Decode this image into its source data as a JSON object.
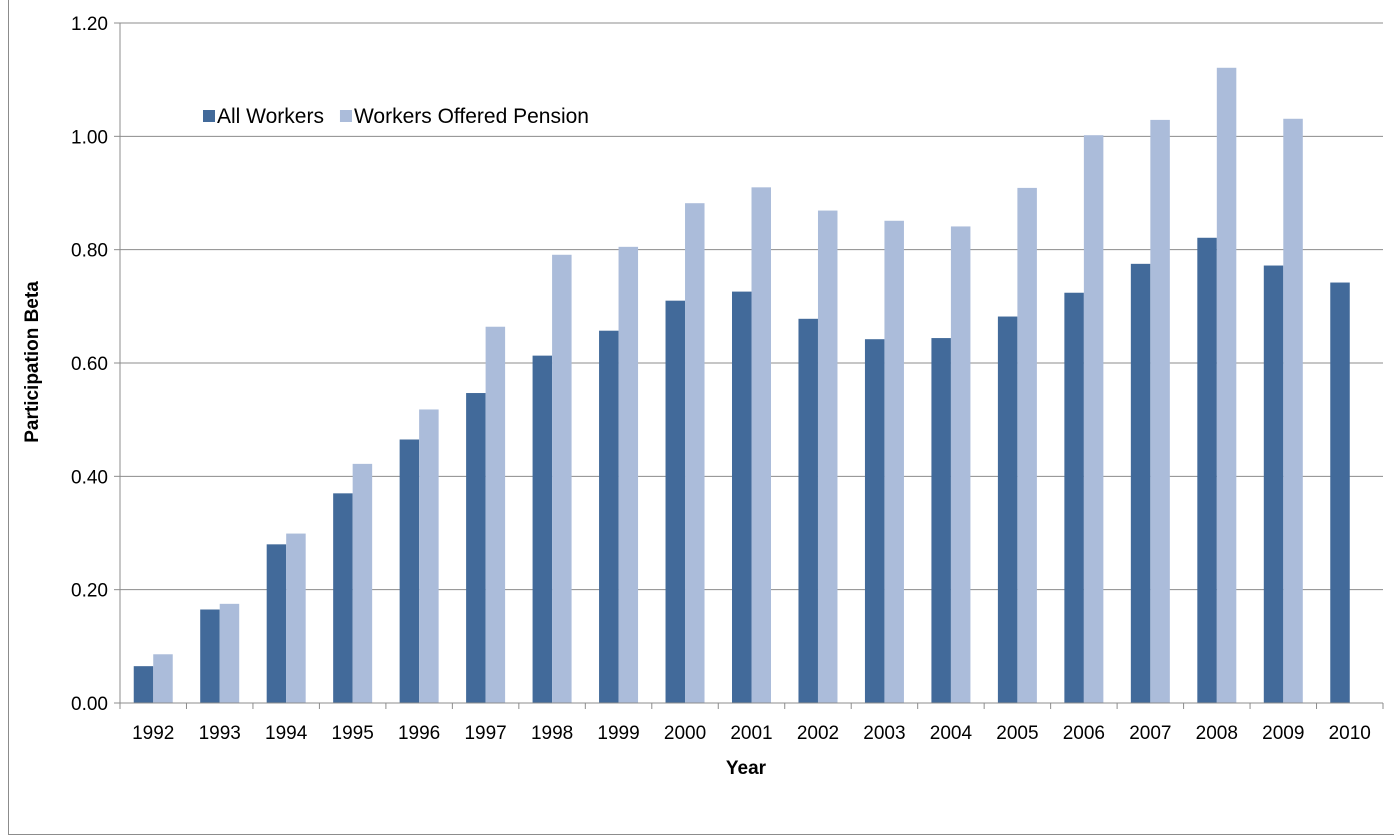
{
  "caption_fragment": "",
  "chart_data": {
    "type": "bar",
    "title": "",
    "xlabel": "Year",
    "ylabel": "Participation Beta",
    "ylim": [
      0,
      1.2
    ],
    "yticks": [
      "0.00",
      "0.20",
      "0.40",
      "0.60",
      "0.80",
      "1.00",
      "1.20"
    ],
    "grid": true,
    "legend_position": "top-left",
    "categories": [
      "1992",
      "1993",
      "1994",
      "1995",
      "1996",
      "1997",
      "1998",
      "1999",
      "2000",
      "2001",
      "2002",
      "2003",
      "2004",
      "2005",
      "2006",
      "2007",
      "2008",
      "2009",
      "2010"
    ],
    "series": [
      {
        "name": "All Workers",
        "color": "#426a9a",
        "values": [
          0.065,
          0.165,
          0.28,
          0.37,
          0.465,
          0.547,
          0.613,
          0.657,
          0.71,
          0.726,
          0.678,
          0.642,
          0.644,
          0.682,
          0.724,
          0.775,
          0.821,
          0.772,
          0.742
        ]
      },
      {
        "name": "Workers Offered Pension",
        "color": "#abbcda",
        "values": [
          0.086,
          0.175,
          0.299,
          0.422,
          0.518,
          0.664,
          0.791,
          0.805,
          0.882,
          0.91,
          0.869,
          0.851,
          0.841,
          0.909,
          1.002,
          1.029,
          1.121,
          1.031,
          null
        ]
      }
    ]
  }
}
